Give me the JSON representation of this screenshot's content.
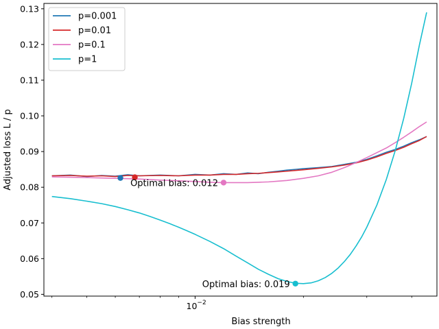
{
  "chart_data": {
    "type": "line",
    "title": "",
    "xlabel": "Bias strength",
    "ylabel": "Adjusted loss L / p",
    "xscale": "log",
    "xlim": [
      0.0038,
      0.047
    ],
    "ylim": [
      0.0495,
      0.1315
    ],
    "grid": false,
    "legend_position": "top-left",
    "yticks": [
      {
        "value": 0.05,
        "label": "0.05"
      },
      {
        "value": 0.06,
        "label": "0.06"
      },
      {
        "value": 0.07,
        "label": "0.07"
      },
      {
        "value": 0.08,
        "label": "0.08"
      },
      {
        "value": 0.09,
        "label": "0.09"
      },
      {
        "value": 0.1,
        "label": "0.10"
      },
      {
        "value": 0.11,
        "label": "0.11"
      },
      {
        "value": 0.12,
        "label": "0.12"
      },
      {
        "value": 0.13,
        "label": "0.13"
      }
    ],
    "xticks_major": [
      {
        "value": 0.01,
        "base": "10",
        "exp": "−2"
      }
    ],
    "xticks_minor": [
      0.004,
      0.005,
      0.006,
      0.007,
      0.008,
      0.009,
      0.02,
      0.03,
      0.04
    ],
    "series": [
      {
        "name": "p=0.001",
        "color": "#1f77b4",
        "x": [
          0.004,
          0.0045,
          0.005,
          0.0055,
          0.006,
          0.0065,
          0.007,
          0.008,
          0.009,
          0.01,
          0.011,
          0.012,
          0.013,
          0.014,
          0.015,
          0.016,
          0.017,
          0.018,
          0.019,
          0.02,
          0.022,
          0.024,
          0.026,
          0.028,
          0.03,
          0.032,
          0.034,
          0.036,
          0.038,
          0.04,
          0.042,
          0.044
        ],
        "y": [
          0.0832,
          0.0834,
          0.083,
          0.0833,
          0.0831,
          0.0835,
          0.0832,
          0.0834,
          0.0832,
          0.0836,
          0.0834,
          0.0838,
          0.0836,
          0.084,
          0.0838,
          0.0842,
          0.0845,
          0.0848,
          0.085,
          0.0852,
          0.0855,
          0.0858,
          0.0864,
          0.087,
          0.0878,
          0.0888,
          0.0898,
          0.0906,
          0.0915,
          0.0925,
          0.0933,
          0.0942
        ]
      },
      {
        "name": "p=0.01",
        "color": "#d62728",
        "x": [
          0.004,
          0.0045,
          0.005,
          0.0055,
          0.006,
          0.0065,
          0.007,
          0.008,
          0.009,
          0.01,
          0.011,
          0.012,
          0.013,
          0.014,
          0.015,
          0.016,
          0.017,
          0.018,
          0.019,
          0.02,
          0.022,
          0.024,
          0.026,
          0.028,
          0.03,
          0.032,
          0.034,
          0.036,
          0.038,
          0.04,
          0.042,
          0.044
        ],
        "y": [
          0.0832,
          0.0833,
          0.0831,
          0.0832,
          0.083,
          0.0833,
          0.0832,
          0.0833,
          0.0832,
          0.0834,
          0.0834,
          0.0836,
          0.0836,
          0.0838,
          0.0839,
          0.0841,
          0.0843,
          0.0845,
          0.0847,
          0.0849,
          0.0853,
          0.0857,
          0.0862,
          0.0868,
          0.0876,
          0.0885,
          0.0895,
          0.0903,
          0.0912,
          0.0922,
          0.0931,
          0.0942
        ]
      },
      {
        "name": "p=0.1",
        "color": "#e377c2",
        "x": [
          0.004,
          0.0045,
          0.005,
          0.0055,
          0.006,
          0.0065,
          0.007,
          0.008,
          0.009,
          0.01,
          0.011,
          0.012,
          0.013,
          0.014,
          0.015,
          0.016,
          0.017,
          0.018,
          0.019,
          0.02,
          0.022,
          0.024,
          0.026,
          0.028,
          0.03,
          0.032,
          0.034,
          0.036,
          0.038,
          0.04,
          0.042,
          0.044
        ],
        "y": [
          0.0829,
          0.0828,
          0.0827,
          0.0826,
          0.0825,
          0.0824,
          0.0823,
          0.082,
          0.0818,
          0.0816,
          0.0814,
          0.0813,
          0.0813,
          0.0813,
          0.0814,
          0.0815,
          0.0817,
          0.0819,
          0.0822,
          0.0825,
          0.0832,
          0.0842,
          0.0855,
          0.0869,
          0.0883,
          0.0897,
          0.091,
          0.0925,
          0.094,
          0.0955,
          0.097,
          0.0983
        ]
      },
      {
        "name": "p=1",
        "color": "#17becf",
        "x": [
          0.004,
          0.0045,
          0.005,
          0.0055,
          0.006,
          0.0065,
          0.007,
          0.0075,
          0.008,
          0.0085,
          0.009,
          0.0095,
          0.01,
          0.011,
          0.012,
          0.013,
          0.014,
          0.015,
          0.016,
          0.017,
          0.018,
          0.019,
          0.02,
          0.021,
          0.022,
          0.023,
          0.024,
          0.025,
          0.026,
          0.027,
          0.028,
          0.029,
          0.03,
          0.032,
          0.034,
          0.036,
          0.038,
          0.04,
          0.042,
          0.044
        ],
        "y": [
          0.0774,
          0.0768,
          0.0761,
          0.0754,
          0.0746,
          0.0737,
          0.0728,
          0.0718,
          0.0708,
          0.0698,
          0.0688,
          0.0678,
          0.0668,
          0.0648,
          0.0628,
          0.0607,
          0.0588,
          0.057,
          0.0556,
          0.0544,
          0.0536,
          0.0531,
          0.053,
          0.0532,
          0.0538,
          0.0547,
          0.0559,
          0.0574,
          0.0592,
          0.0612,
          0.0635,
          0.066,
          0.0688,
          0.075,
          0.0822,
          0.0903,
          0.0993,
          0.1092,
          0.1198,
          0.129
        ]
      }
    ],
    "optimal_points": [
      {
        "series": "p=0.001",
        "x": 0.0062,
        "y": 0.0826
      },
      {
        "series": "p=0.01",
        "x": 0.0068,
        "y": 0.0828
      },
      {
        "series": "p=0.1",
        "x": 0.012,
        "y": 0.0813
      },
      {
        "series": "p=1",
        "x": 0.019,
        "y": 0.053
      }
    ],
    "annotations": [
      {
        "text": "Optimal bias: 0.012",
        "x": 0.012,
        "y": 0.0813
      },
      {
        "text": "Optimal bias: 0.019",
        "x": 0.019,
        "y": 0.053
      }
    ]
  }
}
